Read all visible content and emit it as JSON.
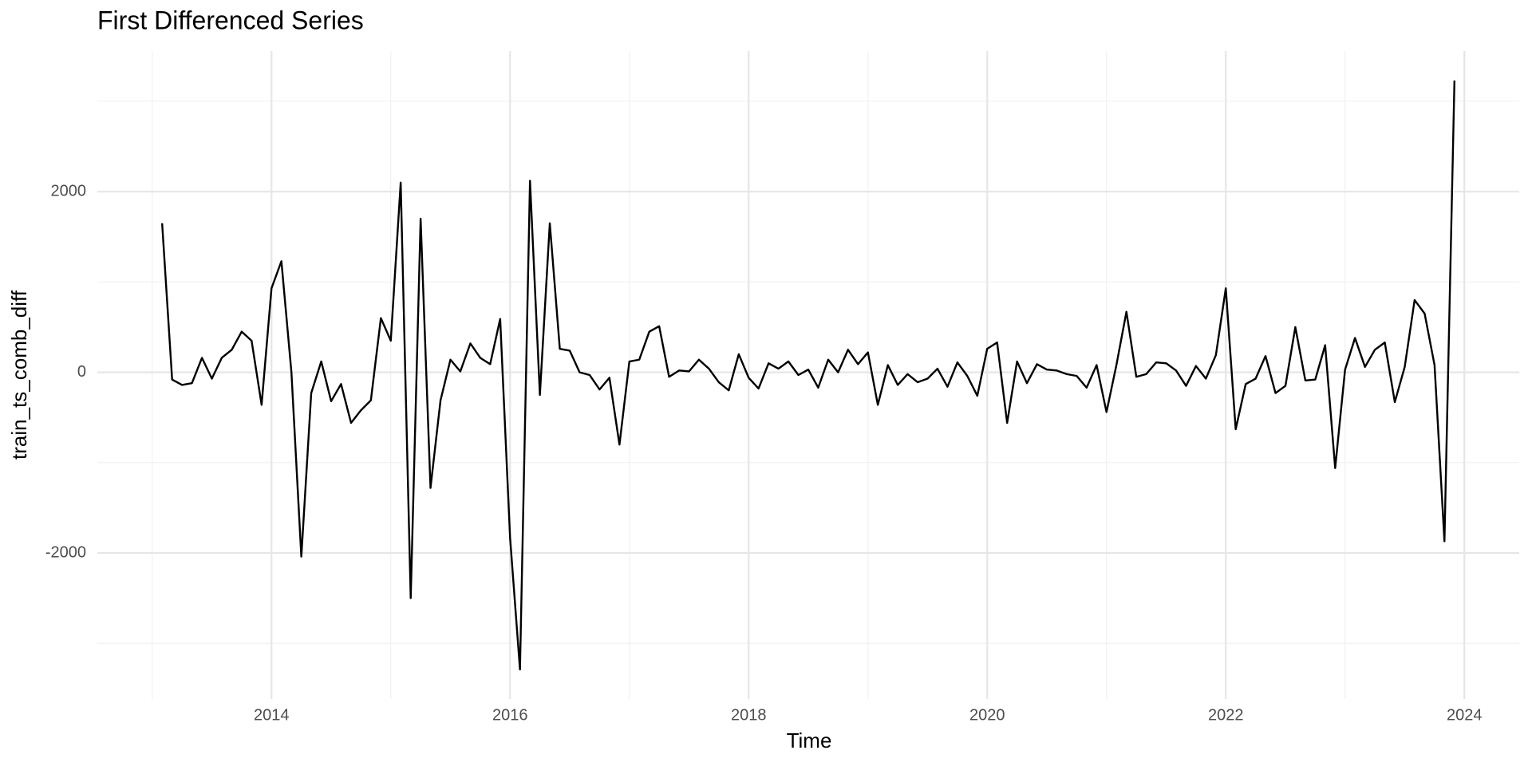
{
  "chart_data": {
    "type": "line",
    "title": "First Differenced Series",
    "xlabel": "Time",
    "ylabel": "train_ts_comb_diff",
    "color": "#000000",
    "grid": true,
    "xlim": [
      2012.54,
      2024.46
    ],
    "ylim": [
      -3616,
      3556
    ],
    "xticks": [
      2014,
      2016,
      2018,
      2020,
      2022,
      2024
    ],
    "yticks": [
      -2000,
      0,
      2000
    ],
    "xminor_grid": [
      2013,
      2015,
      2017,
      2019,
      2021,
      2023
    ],
    "yminor_grid": [
      -3000,
      -1000,
      1000,
      3000
    ],
    "x": [
      2013.083,
      2013.167,
      2013.25,
      2013.333,
      2013.417,
      2013.5,
      2013.583,
      2013.667,
      2013.75,
      2013.833,
      2013.917,
      2014,
      2014.083,
      2014.167,
      2014.25,
      2014.333,
      2014.417,
      2014.5,
      2014.583,
      2014.667,
      2014.75,
      2014.833,
      2014.917,
      2015,
      2015.083,
      2015.167,
      2015.25,
      2015.333,
      2015.417,
      2015.5,
      2015.583,
      2015.667,
      2015.75,
      2015.833,
      2015.917,
      2016,
      2016.083,
      2016.167,
      2016.25,
      2016.333,
      2016.417,
      2016.5,
      2016.583,
      2016.667,
      2016.75,
      2016.833,
      2016.917,
      2017,
      2017.083,
      2017.167,
      2017.25,
      2017.333,
      2017.417,
      2017.5,
      2017.583,
      2017.667,
      2017.75,
      2017.833,
      2017.917,
      2018,
      2018.083,
      2018.167,
      2018.25,
      2018.333,
      2018.417,
      2018.5,
      2018.583,
      2018.667,
      2018.75,
      2018.833,
      2018.917,
      2019,
      2019.083,
      2019.167,
      2019.25,
      2019.333,
      2019.417,
      2019.5,
      2019.583,
      2019.667,
      2019.75,
      2019.833,
      2019.917,
      2020,
      2020.083,
      2020.167,
      2020.25,
      2020.333,
      2020.417,
      2020.5,
      2020.583,
      2020.667,
      2020.75,
      2020.833,
      2020.917,
      2021,
      2021.083,
      2021.167,
      2021.25,
      2021.333,
      2021.417,
      2021.5,
      2021.583,
      2021.667,
      2021.75,
      2021.833,
      2021.917,
      2022,
      2022.083,
      2022.167,
      2022.25,
      2022.333,
      2022.417,
      2022.5,
      2022.583,
      2022.667,
      2022.75,
      2022.833,
      2022.917,
      2023,
      2023.083,
      2023.167,
      2023.25,
      2023.333,
      2023.417,
      2023.5,
      2023.583,
      2023.667,
      2023.75,
      2023.833,
      2023.917
    ],
    "values": [
      1650,
      -80,
      -140,
      -120,
      160,
      -70,
      160,
      250,
      450,
      350,
      -360,
      930,
      1230,
      0,
      -2040,
      -230,
      120,
      -320,
      -130,
      -560,
      -420,
      -310,
      600,
      350,
      2100,
      -2500,
      1700,
      -1280,
      -310,
      140,
      10,
      320,
      160,
      90,
      590,
      -1830,
      -3290,
      2120,
      -250,
      1650,
      260,
      240,
      0,
      -30,
      -190,
      -60,
      -800,
      120,
      140,
      450,
      510,
      -50,
      20,
      10,
      140,
      40,
      -110,
      -200,
      200,
      -60,
      -180,
      100,
      40,
      120,
      -30,
      30,
      -170,
      140,
      0,
      250,
      90,
      220,
      -360,
      80,
      -140,
      -20,
      -110,
      -70,
      40,
      -160,
      110,
      -40,
      -260,
      260,
      330,
      -560,
      120,
      -120,
      90,
      30,
      20,
      -20,
      -40,
      -170,
      80,
      -440,
      80,
      670,
      -50,
      -20,
      110,
      100,
      20,
      -150,
      70,
      -70,
      190,
      930,
      -630,
      -130,
      -70,
      180,
      -230,
      -150,
      500,
      -90,
      -80,
      300,
      -1060,
      30,
      380,
      60,
      250,
      330,
      -330,
      60,
      800,
      650,
      80,
      -1870,
      3230
    ]
  }
}
